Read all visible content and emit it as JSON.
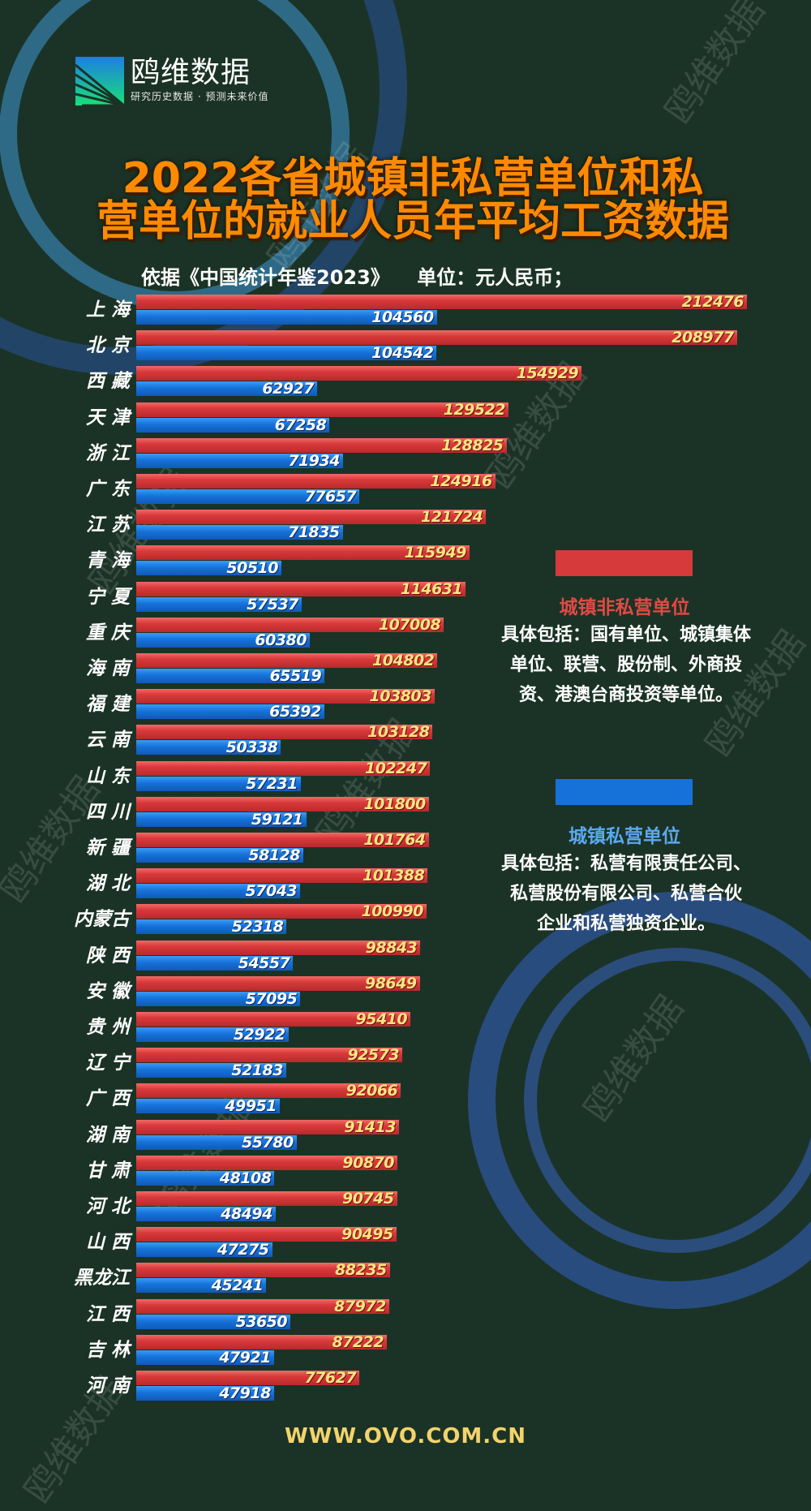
{
  "brand": {
    "name": "鸥维数据",
    "slogan": "研究历史数据 · 预测未来价值"
  },
  "title_line1": "2022各省城镇非私营单位和私",
  "title_line2": "营单位的就业人员年平均工资数据",
  "subtitle": "依据《中国统计年鉴2023》    单位：元人民币；",
  "legend": {
    "red": {
      "title": "城镇非私营单位",
      "desc": [
        "具体包括：国有单位、城镇集体",
        "单位、联营、股份制、外商投",
        "资、港澳台商投资等单位。"
      ],
      "color": "#d63a3a"
    },
    "blue": {
      "title": "城镇私营单位",
      "desc": [
        "具体包括：私营有限责任公司、",
        "私营股份有限公司、私营合伙",
        "企业和私营独资企业。"
      ],
      "color": "#1672d9"
    }
  },
  "footer": "WWW.OVO.COM.CN",
  "watermark": "鸥维数据",
  "colors": {
    "background": "#1b3326",
    "title": "#ff8a00",
    "red_label": "#ffe680",
    "legend_red_title": "#e04a45",
    "legend_blue_title": "#5aa8ee"
  },
  "chart_data": {
    "type": "bar",
    "orientation": "horizontal",
    "categories": [
      "上 海",
      "北 京",
      "西 藏",
      "天 津",
      "浙 江",
      "广 东",
      "江 苏",
      "青 海",
      "宁 夏",
      "重 庆",
      "海 南",
      "福 建",
      "云 南",
      "山 东",
      "四 川",
      "新 疆",
      "湖 北",
      "内蒙古",
      "陕 西",
      "安 徽",
      "贵 州",
      "辽 宁",
      "广 西",
      "湖 南",
      "甘 肃",
      "河 北",
      "山 西",
      "黑龙江",
      "江 西",
      "吉 林",
      "河 南"
    ],
    "series": [
      {
        "name": "城镇非私营单位",
        "color": "#d63a3a",
        "values": [
          212476,
          208977,
          154929,
          129522,
          128825,
          124916,
          121724,
          115949,
          114631,
          107008,
          104802,
          103803,
          103128,
          102247,
          101800,
          101764,
          101388,
          100990,
          98843,
          98649,
          95410,
          92573,
          92066,
          91413,
          90870,
          90745,
          90495,
          88235,
          87972,
          87222,
          77627
        ]
      },
      {
        "name": "城镇私营单位",
        "color": "#1672d9",
        "values": [
          104560,
          104542,
          62927,
          67258,
          71934,
          77657,
          71835,
          50510,
          57537,
          60380,
          65519,
          65392,
          50338,
          57231,
          59121,
          58128,
          57043,
          52318,
          54557,
          57095,
          52922,
          52183,
          49951,
          55780,
          48108,
          48494,
          47275,
          45241,
          53650,
          47921,
          47918
        ]
      }
    ],
    "xlim": [
      0,
      212476
    ],
    "grid": false
  }
}
